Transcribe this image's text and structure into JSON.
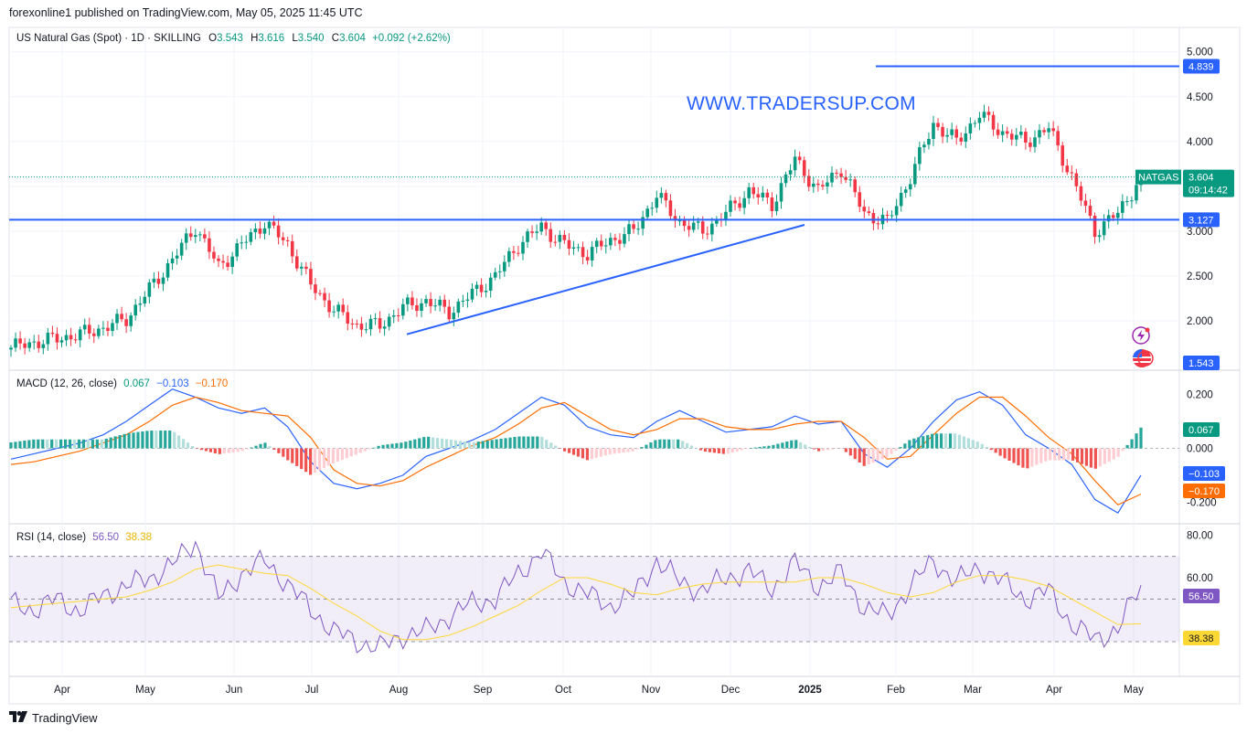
{
  "header": {
    "published": "forexonline1 published on TradingView.com, May 05, 2025 11:45 UTC"
  },
  "price_legend": {
    "name": "US Natural Gas (Spot) · 1D · SKILLING",
    "o_label": "O",
    "o": "3.543",
    "h_label": "H",
    "h": "3.616",
    "l_label": "L",
    "l": "3.540",
    "c_label": "C",
    "c": "3.604",
    "change": "+0.092 (+2.62%)"
  },
  "macd_legend": {
    "name": "MACD (12, 26, close)",
    "hist": "0.067",
    "macd": "−0.103",
    "signal": "−0.170"
  },
  "rsi_legend": {
    "name": "RSI (14, close)",
    "rsi": "56.50",
    "ma": "38.38"
  },
  "watermark": "WWW.TRADERSUP.COM",
  "footer": {
    "brand": "TradingView"
  },
  "colors": {
    "up": "#089981",
    "down": "#f23645",
    "blue": "#2962ff",
    "orange": "#ff6d00",
    "rsi": "#7e57c2",
    "rsi_ma": "#fdd835"
  },
  "icons": [
    "lightning-icon",
    "us-flag-icon",
    "tradingview-logo-icon"
  ],
  "chart_data": [
    {
      "type": "candlestick",
      "title": "US Natural Gas (Spot) · 1D · SKILLING",
      "ylim": [
        1.5,
        5.15
      ],
      "y_ticks": [
        "5.000",
        "4.500",
        "4.000",
        "3.500",
        "3.000",
        "2.500",
        "2.000"
      ],
      "x_ticks": [
        "Apr",
        "May",
        "Jun",
        "Jul",
        "Aug",
        "Sep",
        "Oct",
        "Nov",
        "Dec",
        "2025",
        "Feb",
        "Mar",
        "Apr",
        "May"
      ],
      "series": [
        {
          "name": "close (approx. weekly path)",
          "values": [
            1.7,
            1.76,
            1.8,
            1.85,
            1.92,
            2.02,
            2.35,
            2.68,
            3.05,
            2.6,
            2.85,
            3.1,
            2.85,
            2.4,
            2.12,
            1.95,
            1.95,
            2.15,
            2.22,
            2.1,
            2.3,
            2.5,
            2.85,
            3.05,
            2.85,
            2.75,
            2.9,
            3.0,
            3.4,
            3.1,
            3.0,
            3.2,
            3.45,
            3.3,
            3.8,
            3.45,
            3.7,
            3.2,
            3.1,
            3.6,
            4.2,
            4.0,
            4.3,
            4.1,
            4.0,
            4.15,
            3.6,
            3.0,
            3.2,
            3.6
          ]
        }
      ],
      "horizontal_levels": [
        {
          "label": "4.839",
          "value": 4.839
        },
        {
          "label": "3.127",
          "value": 3.127
        }
      ],
      "last_price": {
        "symbol": "NATGAS",
        "value": "3.604",
        "countdown": "09:14:42",
        "level": 3.604
      },
      "marker_label": {
        "value": "1.543",
        "level": 1.543
      },
      "trendline": {
        "from": {
          "x": "Aug",
          "y": 1.85
        },
        "to": {
          "x": "Dec",
          "y": 3.07
        }
      }
    },
    {
      "type": "macd",
      "title": "MACD (12, 26, close)",
      "ylim": [
        -0.27,
        0.28
      ],
      "y_ticks": [
        "0.200",
        "0.000",
        "-0.200"
      ],
      "last": {
        "histogram": "0.067",
        "macd": "−0.103",
        "signal": "−0.170"
      },
      "series": [
        {
          "name": "MACD",
          "values": [
            -0.04,
            -0.02,
            0.0,
            0.02,
            0.05,
            0.1,
            0.16,
            0.22,
            0.19,
            0.15,
            0.13,
            0.15,
            0.08,
            -0.05,
            -0.13,
            -0.15,
            -0.13,
            -0.1,
            -0.03,
            0.0,
            0.03,
            0.07,
            0.13,
            0.19,
            0.16,
            0.08,
            0.05,
            0.04,
            0.1,
            0.14,
            0.1,
            0.06,
            0.07,
            0.08,
            0.12,
            0.09,
            0.1,
            -0.02,
            -0.07,
            0.0,
            0.1,
            0.18,
            0.21,
            0.16,
            0.05,
            0.0,
            -0.06,
            -0.19,
            -0.24,
            -0.1
          ]
        },
        {
          "name": "Signal",
          "values": [
            -0.06,
            -0.05,
            -0.03,
            -0.01,
            0.02,
            0.05,
            0.1,
            0.16,
            0.19,
            0.17,
            0.14,
            0.13,
            0.12,
            0.04,
            -0.08,
            -0.13,
            -0.14,
            -0.12,
            -0.07,
            -0.03,
            0.01,
            0.04,
            0.09,
            0.15,
            0.17,
            0.12,
            0.07,
            0.05,
            0.07,
            0.11,
            0.11,
            0.08,
            0.07,
            0.07,
            0.09,
            0.1,
            0.1,
            0.04,
            -0.04,
            -0.03,
            0.05,
            0.13,
            0.19,
            0.19,
            0.12,
            0.04,
            -0.02,
            -0.12,
            -0.21,
            -0.17
          ]
        }
      ]
    },
    {
      "type": "rsi",
      "title": "RSI (14, close)",
      "ylim": [
        15,
        84
      ],
      "y_ticks": [
        "80.00",
        "60.00"
      ],
      "bands": [
        30,
        70
      ],
      "last": {
        "rsi": "56.50",
        "ma": "38.38"
      },
      "series": [
        {
          "name": "RSI",
          "values": [
            48,
            45,
            50,
            44,
            52,
            56,
            60,
            66,
            77,
            50,
            62,
            68,
            57,
            45,
            35,
            30,
            27,
            33,
            35,
            42,
            48,
            50,
            62,
            72,
            58,
            52,
            47,
            52,
            68,
            58,
            54,
            60,
            63,
            55,
            67,
            56,
            62,
            46,
            42,
            56,
            68,
            58,
            65,
            58,
            50,
            54,
            38,
            31,
            36,
            56.5
          ]
        },
        {
          "name": "RSI-based MA",
          "values": [
            46,
            47,
            48,
            49,
            50,
            51,
            54,
            58,
            64,
            66,
            64,
            62,
            61,
            55,
            48,
            42,
            35,
            31,
            31,
            33,
            37,
            42,
            47,
            54,
            60,
            60,
            57,
            53,
            52,
            55,
            57,
            58,
            58,
            58,
            58,
            60,
            60,
            57,
            53,
            51,
            53,
            58,
            61,
            61,
            59,
            56,
            50,
            44,
            38,
            38.38
          ]
        }
      ]
    }
  ]
}
